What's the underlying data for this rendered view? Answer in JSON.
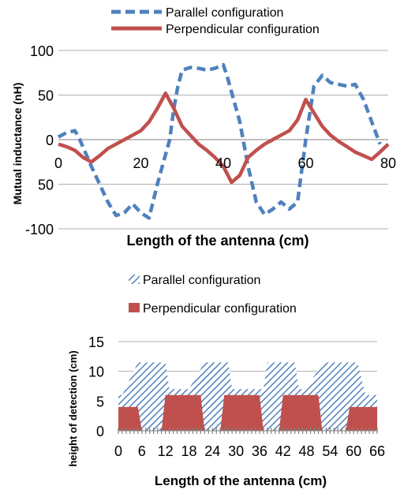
{
  "chart_data": [
    {
      "type": "line",
      "xlabel": "Length of the antenna (cm)",
      "ylabel": "Mutual inductance (nH)",
      "xlim": [
        0,
        80
      ],
      "ylim": [
        -100,
        100
      ],
      "xticks": [
        "0",
        "20",
        "40",
        "60",
        "80"
      ],
      "yticks": [
        "100",
        "50",
        "0",
        "50",
        "-100"
      ],
      "grid": "horizontal",
      "legend_position": "top",
      "series": [
        {
          "name": "Parallel configuration",
          "color": "#4f81bd",
          "style": "dashed",
          "points": [
            [
              0,
              3
            ],
            [
              2,
              8
            ],
            [
              4,
              10
            ],
            [
              5,
              2
            ],
            [
              8,
              -30
            ],
            [
              12,
              -70
            ],
            [
              14,
              -85
            ],
            [
              16,
              -82
            ],
            [
              18,
              -72
            ],
            [
              20,
              -82
            ],
            [
              22,
              -88
            ],
            [
              24,
              -50
            ],
            [
              27,
              0
            ],
            [
              28,
              35
            ],
            [
              29,
              60
            ],
            [
              30,
              78
            ],
            [
              32,
              81
            ],
            [
              34,
              80
            ],
            [
              36,
              78
            ],
            [
              38,
              80
            ],
            [
              40,
              84
            ],
            [
              41,
              70
            ],
            [
              44,
              20
            ],
            [
              46,
              -30
            ],
            [
              48,
              -70
            ],
            [
              50,
              -84
            ],
            [
              52,
              -78
            ],
            [
              54,
              -70
            ],
            [
              56,
              -78
            ],
            [
              58,
              -70
            ],
            [
              60,
              0
            ],
            [
              62,
              60
            ],
            [
              64,
              72
            ],
            [
              66,
              64
            ],
            [
              68,
              62
            ],
            [
              70,
              60
            ],
            [
              72,
              62
            ],
            [
              74,
              45
            ],
            [
              76,
              20
            ],
            [
              78,
              -5
            ]
          ]
        },
        {
          "name": "Perpendicular configuration",
          "color": "#c0504d",
          "style": "solid",
          "points": [
            [
              0,
              -5
            ],
            [
              2,
              -8
            ],
            [
              4,
              -12
            ],
            [
              6,
              -20
            ],
            [
              8,
              -25
            ],
            [
              10,
              -18
            ],
            [
              12,
              -10
            ],
            [
              14,
              -5
            ],
            [
              16,
              0
            ],
            [
              18,
              5
            ],
            [
              20,
              10
            ],
            [
              22,
              20
            ],
            [
              24,
              35
            ],
            [
              26,
              52
            ],
            [
              28,
              35
            ],
            [
              30,
              15
            ],
            [
              32,
              5
            ],
            [
              34,
              -5
            ],
            [
              36,
              -12
            ],
            [
              38,
              -20
            ],
            [
              40,
              -30
            ],
            [
              42,
              -48
            ],
            [
              44,
              -40
            ],
            [
              46,
              -20
            ],
            [
              48,
              -12
            ],
            [
              50,
              -5
            ],
            [
              52,
              0
            ],
            [
              54,
              5
            ],
            [
              56,
              10
            ],
            [
              58,
              22
            ],
            [
              60,
              45
            ],
            [
              62,
              30
            ],
            [
              64,
              15
            ],
            [
              66,
              5
            ],
            [
              68,
              -2
            ],
            [
              70,
              -8
            ],
            [
              72,
              -14
            ],
            [
              74,
              -18
            ],
            [
              76,
              -22
            ],
            [
              78,
              -14
            ],
            [
              80,
              -5
            ]
          ]
        }
      ]
    },
    {
      "type": "area",
      "xlabel": "Length of the antenna (cm)",
      "ylabel": "height of detection (cm)",
      "xlim": [
        0,
        66
      ],
      "ylim": [
        0,
        15
      ],
      "xticks": [
        "0",
        "6",
        "12",
        "18",
        "24",
        "30",
        "36",
        "42",
        "48",
        "54",
        "60",
        "66"
      ],
      "yticks": [
        "15",
        "10",
        "5",
        "0"
      ],
      "grid": "horizontal",
      "legend_position": "top",
      "series": [
        {
          "name": "Parallel configuration",
          "color": "#4f81bd",
          "pattern": "hatched",
          "points": [
            [
              0,
              6
            ],
            [
              1,
              6
            ],
            [
              5,
              11.5
            ],
            [
              12,
              11.5
            ],
            [
              13,
              7
            ],
            [
              18,
              7
            ],
            [
              22,
              11.5
            ],
            [
              28,
              11.5
            ],
            [
              29,
              7
            ],
            [
              37,
              7
            ],
            [
              38,
              11.5
            ],
            [
              45,
              11.5
            ],
            [
              46,
              7
            ],
            [
              48,
              7
            ],
            [
              52,
              11.5
            ],
            [
              61,
              11.5
            ],
            [
              63,
              6
            ],
            [
              66,
              6
            ]
          ]
        },
        {
          "name": "Perpendicular configuration",
          "color": "#c0504d",
          "pattern": "solid",
          "points": [
            [
              0,
              4
            ],
            [
              5,
              4
            ],
            [
              6,
              0
            ],
            [
              11,
              0
            ],
            [
              12,
              6
            ],
            [
              21,
              6
            ],
            [
              22,
              0
            ],
            [
              26,
              0
            ],
            [
              27,
              6
            ],
            [
              36,
              6
            ],
            [
              37,
              0
            ],
            [
              41,
              0
            ],
            [
              42,
              6
            ],
            [
              51,
              6
            ],
            [
              52,
              0
            ],
            [
              58,
              0
            ],
            [
              59,
              4
            ],
            [
              66,
              4
            ]
          ]
        }
      ]
    }
  ]
}
